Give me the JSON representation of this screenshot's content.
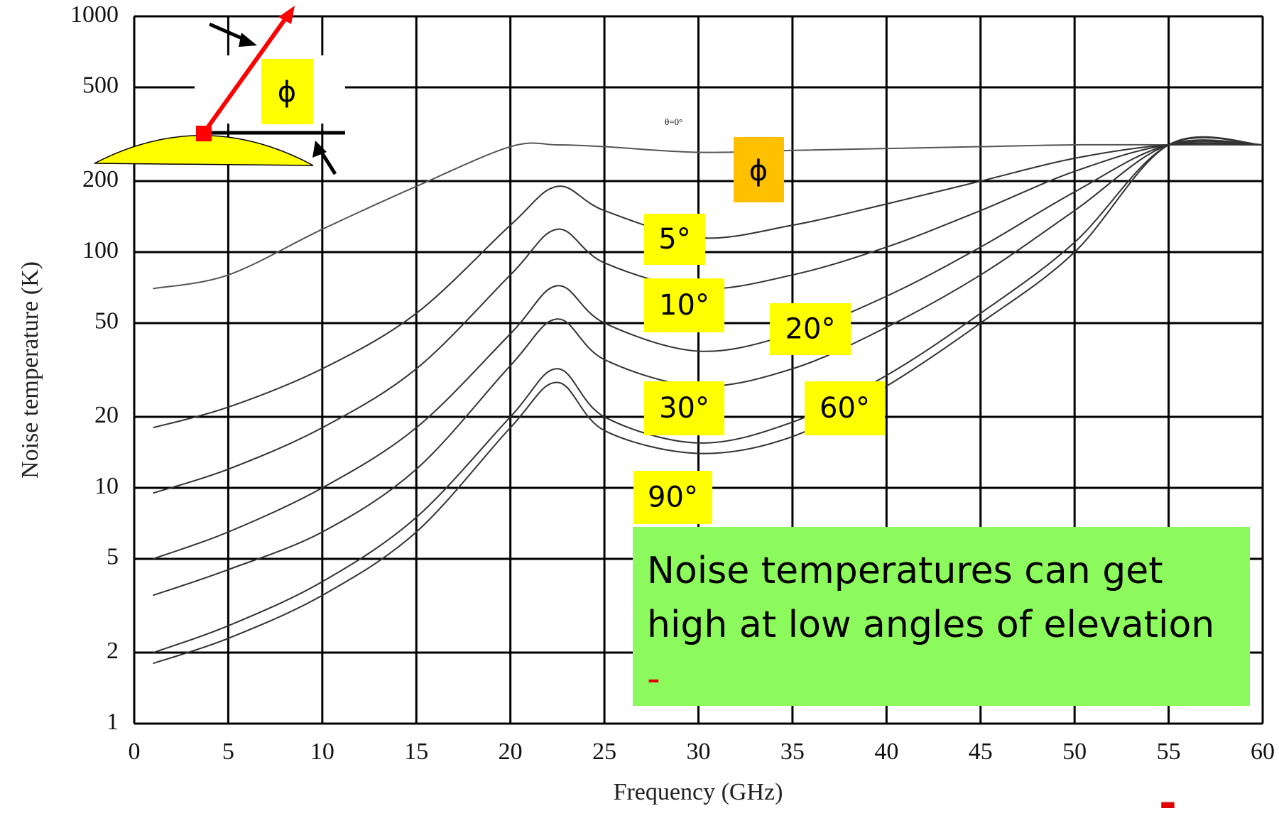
{
  "chart_data": {
    "type": "line",
    "log_y": true,
    "grid": true,
    "xlabel": "Frequency (GHz)",
    "ylabel": "Noise temperature (K)",
    "xlim": [
      0,
      60
    ],
    "xticks": [
      0,
      5,
      10,
      15,
      20,
      25,
      30,
      35,
      40,
      45,
      50,
      55,
      60
    ],
    "ylim": [
      1,
      1000
    ],
    "yticks": [
      1,
      2,
      5,
      10,
      20,
      50,
      100,
      200,
      500,
      1000
    ],
    "x": [
      1,
      5,
      10,
      15,
      20,
      22.5,
      25,
      30,
      35,
      40,
      45,
      50,
      55,
      60
    ],
    "series": [
      {
        "name": "θ=0°",
        "color": "#555555",
        "values": [
          70,
          80,
          125,
          190,
          280,
          285,
          280,
          265,
          270,
          275,
          280,
          285,
          285,
          285
        ]
      },
      {
        "name": "5°",
        "color": "#333333",
        "values": [
          18,
          22,
          32,
          55,
          130,
          190,
          150,
          115,
          130,
          160,
          200,
          250,
          285,
          285
        ]
      },
      {
        "name": "10°",
        "color": "#333333",
        "values": [
          9.5,
          12,
          18,
          32,
          80,
          125,
          90,
          70,
          80,
          105,
          150,
          220,
          285,
          285
        ]
      },
      {
        "name": "20°",
        "color": "#333333",
        "values": [
          5,
          6.5,
          10,
          18,
          45,
          72,
          50,
          38,
          45,
          65,
          105,
          180,
          285,
          285
        ]
      },
      {
        "name": "30°",
        "color": "#333333",
        "values": [
          3.5,
          4.5,
          6.5,
          12,
          33,
          52,
          35,
          27,
          32,
          48,
          80,
          150,
          285,
          285
        ]
      },
      {
        "name": "60°",
        "color": "#333333",
        "values": [
          2,
          2.6,
          4,
          7.5,
          20,
          32,
          20,
          15.5,
          19,
          30,
          55,
          110,
          285,
          285
        ]
      },
      {
        "name": "90°",
        "color": "#333333",
        "values": [
          1.8,
          2.3,
          3.5,
          6.5,
          18,
          28,
          17.5,
          14,
          16.5,
          27,
          50,
          100,
          285,
          285
        ]
      }
    ],
    "annotations": [
      "ϕ",
      "ϕ",
      "Noise temperatures can get high at low angles of elevation",
      "-",
      "-"
    ]
  }
}
